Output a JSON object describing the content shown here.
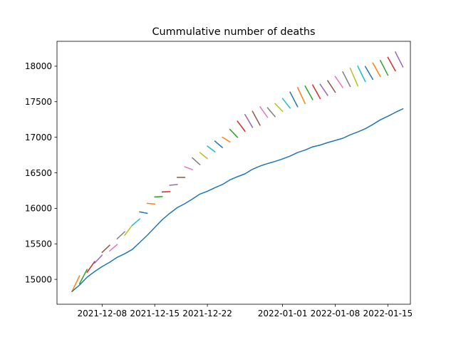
{
  "chart_data": {
    "type": "line",
    "title": "Cummulative number of deaths",
    "xlabel": "",
    "ylabel": "",
    "grid": false,
    "legend": "none",
    "x_axis": {
      "type": "date",
      "range": [
        "2021-12-02",
        "2022-01-18"
      ],
      "tick_dates": [
        "2021-12-08",
        "2021-12-15",
        "2021-12-22",
        "2022-01-01",
        "2022-01-08",
        "2022-01-15"
      ],
      "tick_labels": [
        "2021-12-08",
        "2021-12-15",
        "2021-12-22",
        "2022-01-01",
        "2022-01-08",
        "2022-01-15"
      ]
    },
    "y_axis": {
      "range": [
        14650,
        18350
      ],
      "ticks": [
        15000,
        15500,
        16000,
        16500,
        17000,
        17500,
        18000
      ],
      "tick_labels": [
        "15000",
        "15500",
        "16000",
        "16500",
        "17000",
        "17500",
        "18000"
      ]
    },
    "series": [
      {
        "color": "#1f77b4",
        "points": [
          [
            "2021-12-04",
            14830
          ],
          [
            "2021-12-05",
            14920
          ],
          [
            "2021-12-06",
            15030
          ],
          [
            "2021-12-07",
            15110
          ],
          [
            "2021-12-08",
            15180
          ],
          [
            "2021-12-09",
            15240
          ],
          [
            "2021-12-10",
            15310
          ],
          [
            "2021-12-11",
            15360
          ],
          [
            "2021-12-12",
            15420
          ],
          [
            "2021-12-13",
            15520
          ],
          [
            "2021-12-14",
            15620
          ],
          [
            "2021-12-15",
            15730
          ],
          [
            "2021-12-16",
            15840
          ],
          [
            "2021-12-17",
            15930
          ],
          [
            "2021-12-18",
            16010
          ],
          [
            "2021-12-19",
            16065
          ],
          [
            "2021-12-20",
            16130
          ],
          [
            "2021-12-21",
            16200
          ],
          [
            "2021-12-22",
            16240
          ],
          [
            "2021-12-23",
            16290
          ],
          [
            "2021-12-24",
            16335
          ],
          [
            "2021-12-25",
            16400
          ],
          [
            "2021-12-26",
            16445
          ],
          [
            "2021-12-27",
            16485
          ],
          [
            "2021-12-28",
            16550
          ],
          [
            "2021-12-29",
            16595
          ],
          [
            "2021-12-30",
            16630
          ],
          [
            "2021-12-31",
            16660
          ],
          [
            "2022-01-01",
            16695
          ],
          [
            "2022-01-02",
            16735
          ],
          [
            "2022-01-03",
            16785
          ],
          [
            "2022-01-04",
            16820
          ],
          [
            "2022-01-05",
            16865
          ],
          [
            "2022-01-06",
            16890
          ],
          [
            "2022-01-07",
            16925
          ],
          [
            "2022-01-08",
            16955
          ],
          [
            "2022-01-09",
            16985
          ],
          [
            "2022-01-10",
            17035
          ],
          [
            "2022-01-11",
            17075
          ],
          [
            "2022-01-12",
            17120
          ],
          [
            "2022-01-13",
            17180
          ],
          [
            "2022-01-14",
            17245
          ],
          [
            "2022-01-15",
            17295
          ],
          [
            "2022-01-16",
            17350
          ],
          [
            "2022-01-17",
            17400
          ]
        ]
      }
    ],
    "segments": [
      {
        "color": "#ff7f0e",
        "points": [
          [
            "2021-12-04",
            14830
          ],
          [
            "2021-12-05",
            15050
          ]
        ]
      },
      {
        "color": "#2ca02c",
        "points": [
          [
            "2021-12-05",
            14940
          ],
          [
            "2021-12-06",
            15140
          ]
        ]
      },
      {
        "color": "#d62728",
        "points": [
          [
            "2021-12-06",
            15100
          ],
          [
            "2021-12-07",
            15250
          ]
        ]
      },
      {
        "color": "#9467bd",
        "points": [
          [
            "2021-12-07",
            15230
          ],
          [
            "2021-12-08",
            15340
          ]
        ]
      },
      {
        "color": "#8c564b",
        "points": [
          [
            "2021-12-08",
            15380
          ],
          [
            "2021-12-09",
            15480
          ]
        ]
      },
      {
        "color": "#e377c2",
        "points": [
          [
            "2021-12-09",
            15400
          ],
          [
            "2021-12-10",
            15490
          ]
        ]
      },
      {
        "color": "#7f7f7f",
        "points": [
          [
            "2021-12-10",
            15570
          ],
          [
            "2021-12-11",
            15670
          ]
        ]
      },
      {
        "color": "#bcbd22",
        "points": [
          [
            "2021-12-11",
            15620
          ],
          [
            "2021-12-12",
            15760
          ]
        ]
      },
      {
        "color": "#17becf",
        "points": [
          [
            "2021-12-12",
            15760
          ],
          [
            "2021-12-13",
            15850
          ]
        ]
      },
      {
        "color": "#1f77b4",
        "points": [
          [
            "2021-12-13",
            15950
          ],
          [
            "2021-12-14",
            15930
          ]
        ]
      },
      {
        "color": "#ff7f0e",
        "points": [
          [
            "2021-12-14",
            16070
          ],
          [
            "2021-12-15",
            16060
          ]
        ]
      },
      {
        "color": "#2ca02c",
        "points": [
          [
            "2021-12-15",
            16160
          ],
          [
            "2021-12-16",
            16165
          ]
        ]
      },
      {
        "color": "#d62728",
        "points": [
          [
            "2021-12-16",
            16230
          ],
          [
            "2021-12-17",
            16235
          ]
        ]
      },
      {
        "color": "#9467bd",
        "points": [
          [
            "2021-12-17",
            16325
          ],
          [
            "2021-12-18",
            16335
          ]
        ]
      },
      {
        "color": "#8c564b",
        "points": [
          [
            "2021-12-18",
            16435
          ],
          [
            "2021-12-19",
            16435
          ]
        ]
      },
      {
        "color": "#e377c2",
        "points": [
          [
            "2021-12-19",
            16585
          ],
          [
            "2021-12-20",
            16545
          ]
        ]
      },
      {
        "color": "#7f7f7f",
        "points": [
          [
            "2021-12-20",
            16710
          ],
          [
            "2021-12-21",
            16615
          ]
        ]
      },
      {
        "color": "#bcbd22",
        "points": [
          [
            "2021-12-21",
            16785
          ],
          [
            "2021-12-22",
            16700
          ]
        ]
      },
      {
        "color": "#17becf",
        "points": [
          [
            "2021-12-22",
            16875
          ],
          [
            "2021-12-23",
            16795
          ]
        ]
      },
      {
        "color": "#1f77b4",
        "points": [
          [
            "2021-12-23",
            16945
          ],
          [
            "2021-12-24",
            16855
          ]
        ]
      },
      {
        "color": "#ff7f0e",
        "points": [
          [
            "2021-12-24",
            17000
          ],
          [
            "2021-12-25",
            16935
          ]
        ]
      },
      {
        "color": "#2ca02c",
        "points": [
          [
            "2021-12-25",
            17110
          ],
          [
            "2021-12-26",
            17000
          ]
        ]
      },
      {
        "color": "#d62728",
        "points": [
          [
            "2021-12-26",
            17225
          ],
          [
            "2021-12-27",
            17085
          ]
        ]
      },
      {
        "color": "#9467bd",
        "points": [
          [
            "2021-12-27",
            17320
          ],
          [
            "2021-12-28",
            17140
          ]
        ]
      },
      {
        "color": "#8c564b",
        "points": [
          [
            "2021-12-28",
            17365
          ],
          [
            "2021-12-29",
            17170
          ]
        ]
      },
      {
        "color": "#e377c2",
        "points": [
          [
            "2021-12-29",
            17430
          ],
          [
            "2021-12-30",
            17280
          ]
        ]
      },
      {
        "color": "#7f7f7f",
        "points": [
          [
            "2021-12-30",
            17415
          ],
          [
            "2021-12-31",
            17290
          ]
        ]
      },
      {
        "color": "#bcbd22",
        "points": [
          [
            "2021-12-31",
            17475
          ],
          [
            "2022-01-01",
            17365
          ]
        ]
      },
      {
        "color": "#17becf",
        "points": [
          [
            "2022-01-01",
            17545
          ],
          [
            "2022-01-02",
            17410
          ]
        ]
      },
      {
        "color": "#1f77b4",
        "points": [
          [
            "2022-01-02",
            17635
          ],
          [
            "2022-01-03",
            17430
          ]
        ]
      },
      {
        "color": "#ff7f0e",
        "points": [
          [
            "2022-01-03",
            17700
          ],
          [
            "2022-01-04",
            17475
          ]
        ]
      },
      {
        "color": "#2ca02c",
        "points": [
          [
            "2022-01-04",
            17720
          ],
          [
            "2022-01-05",
            17530
          ]
        ]
      },
      {
        "color": "#d62728",
        "points": [
          [
            "2022-01-05",
            17735
          ],
          [
            "2022-01-06",
            17545
          ]
        ]
      },
      {
        "color": "#9467bd",
        "points": [
          [
            "2022-01-06",
            17745
          ],
          [
            "2022-01-07",
            17590
          ]
        ]
      },
      {
        "color": "#8c564b",
        "points": [
          [
            "2022-01-07",
            17795
          ],
          [
            "2022-01-08",
            17635
          ]
        ]
      },
      {
        "color": "#e377c2",
        "points": [
          [
            "2022-01-08",
            17855
          ],
          [
            "2022-01-09",
            17700
          ]
        ]
      },
      {
        "color": "#7f7f7f",
        "points": [
          [
            "2022-01-09",
            17920
          ],
          [
            "2022-01-10",
            17715
          ]
        ]
      },
      {
        "color": "#bcbd22",
        "points": [
          [
            "2022-01-10",
            17970
          ],
          [
            "2022-01-11",
            17725
          ]
        ]
      },
      {
        "color": "#17becf",
        "points": [
          [
            "2022-01-11",
            18000
          ],
          [
            "2022-01-12",
            17785
          ]
        ]
      },
      {
        "color": "#1f77b4",
        "points": [
          [
            "2022-01-12",
            17995
          ],
          [
            "2022-01-13",
            17815
          ]
        ]
      },
      {
        "color": "#ff7f0e",
        "points": [
          [
            "2022-01-13",
            18045
          ],
          [
            "2022-01-14",
            17855
          ]
        ]
      },
      {
        "color": "#2ca02c",
        "points": [
          [
            "2022-01-14",
            18080
          ],
          [
            "2022-01-15",
            17875
          ]
        ]
      },
      {
        "color": "#d62728",
        "points": [
          [
            "2022-01-15",
            18125
          ],
          [
            "2022-01-16",
            17935
          ]
        ]
      },
      {
        "color": "#9467bd",
        "points": [
          [
            "2022-01-16",
            18200
          ],
          [
            "2022-01-17",
            17990
          ]
        ]
      }
    ]
  }
}
